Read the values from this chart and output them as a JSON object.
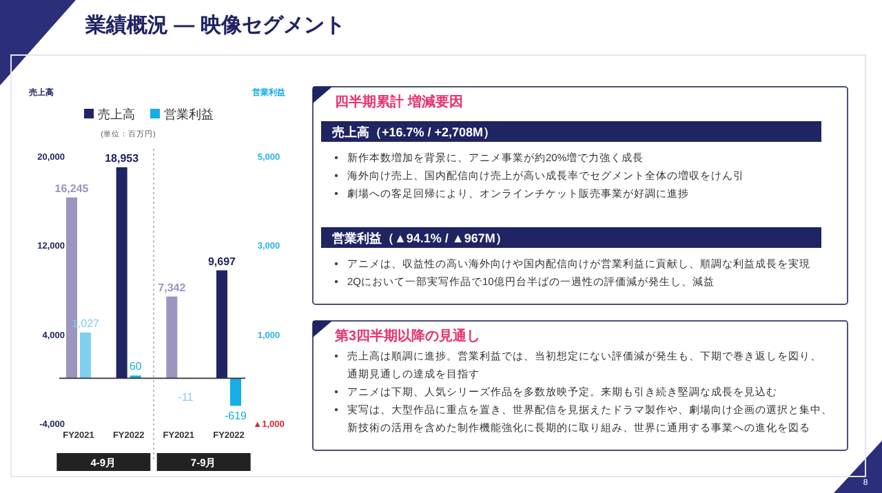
{
  "chart_data": [
    {
      "type": "bar",
      "title": "業績概況 — 映像セグメント",
      "subtitle": "(単位：百万円)",
      "ylabel": "売上高",
      "y2label": "営業利益",
      "categories": [
        "FY2021",
        "FY2022",
        "FY2021",
        "FY2022"
      ],
      "series": [
        {
          "name": "売上高",
          "color": "#1f2463",
          "colors": [
            "#9b95bf",
            "#1f2463",
            "#9b95bf",
            "#1f2463"
          ],
          "values": [
            16245,
            18953,
            7342,
            9697
          ],
          "value_labels": [
            "16,245",
            "18,953",
            "7,342",
            "9,697"
          ]
        },
        {
          "name": "営業利益",
          "color": "#17aee6",
          "axis": "y2",
          "colors": [
            "#7fd0f0",
            "#17aee6",
            "#7fd0f0",
            "#17aee6"
          ],
          "values": [
            1027,
            60,
            -11,
            -619
          ],
          "value_labels": [
            "1,027",
            "60",
            "-11",
            "-619"
          ]
        }
      ],
      "ylim": [
        -4000,
        20000
      ],
      "yticks": [
        {
          "value": -4000,
          "label": "-4,000"
        },
        {
          "value": 4000,
          "label": "4,000"
        },
        {
          "value": 12000,
          "label": "12,000"
        },
        {
          "value": 20000,
          "label": "20,000"
        }
      ],
      "y2lim": [
        -1000,
        5000
      ],
      "y2ticks": [
        {
          "value": -1000,
          "label": "▲1,000"
        },
        {
          "value": 1000,
          "label": "1,000"
        },
        {
          "value": 3000,
          "label": "3,000"
        },
        {
          "value": 5000,
          "label": "5,000"
        }
      ],
      "legend": "top",
      "annotations": [
        "4-9月",
        "7-9月",
        "8"
      ]
    },
    {
      "type": "other",
      "title": "四半期累計 増減要因",
      "subtitle": "売上高（+16.7% / +2,708M）",
      "annotations": [
        "新作本数増加を背景に、アニメ事業が約20%増で力強く成長",
        "海外向け売上、国内配信向け売上が高い成長率でセグメント全体の増収をけん引",
        "劇場への客足回帰により、オンラインチケット販売事業が好調に進捗"
      ]
    },
    {
      "type": "other",
      "subtitle": "営業利益（▲94.1% / ▲967M）",
      "annotations": [
        "アニメは、収益性の高い海外向けや国内配信向けが営業利益に貢献し、順調な利益成長を実現",
        "2Qにおいて一部実写作品で10億円台半ばの一過性の評価減が発生し、減益"
      ]
    },
    {
      "type": "other",
      "title": "第3四半期以降の見通し",
      "annotations": [
        "売上高は順調に進捗。営業利益では、当初想定にない評価減が発生も、下期で巻き返しを図り、通期見通しの達成を目指す",
        "アニメは下期、人気シリーズ作品を多数放映予定。来期も引き続き堅調な成長を見込む",
        "実写は、大型作品に重点を置き、世界配信を見据えたドラマ製作や、劇場向け企画の選択と集中、新技術の活用を含めた制作機能強化に長期的に取り組み、世界に通用する事業への進化を図る"
      ]
    }
  ]
}
